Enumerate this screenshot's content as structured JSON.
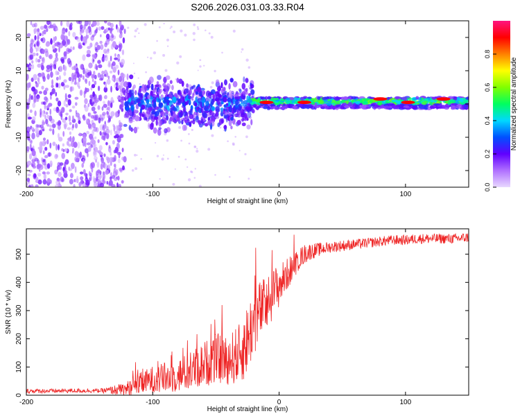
{
  "title": "S206.2026.031.03.33.R04",
  "chart_data": [
    {
      "type": "heatmap",
      "xlabel": "Height of straight line (km)",
      "ylabel": "Frequency (Hz)",
      "xlim": [
        -200,
        150
      ],
      "ylim": [
        -25,
        25
      ],
      "xticks": [
        -200,
        -100,
        0,
        100
      ],
      "xtick_labels": [
        "-200",
        "-100",
        "0",
        "100"
      ],
      "yticks": [
        -20,
        -10,
        0,
        10,
        20
      ],
      "ytick_labels": [
        "-20",
        "-10",
        "0",
        "10",
        "20"
      ],
      "colorbar": {
        "label": "Normalized spectral amplitude",
        "range": [
          0,
          1
        ],
        "ticks": [
          0,
          0.2,
          0.4,
          0.6,
          0.8
        ],
        "tick_labels": [
          "0.0",
          "0.2",
          "0.4",
          "0.6",
          "0.8"
        ]
      },
      "regions": [
        {
          "x_range": [
            -200,
            -122
          ],
          "freq_range": [
            -25,
            25
          ],
          "amplitude": "0.05-0.18",
          "pattern": "scattered noise"
        },
        {
          "x_range": [
            -122,
            -20
          ],
          "freq_range": [
            -8,
            8
          ],
          "amplitude": "0.1-0.3",
          "pattern": "broadening signal"
        },
        {
          "x_range": [
            -20,
            150
          ],
          "freq_range": [
            0,
            2.5
          ],
          "amplitude": "0.3-0.95",
          "pattern": "narrow carrier line"
        }
      ],
      "peak_points": [
        {
          "x": -10,
          "freq": 0.5,
          "amp": 0.9
        },
        {
          "x": 20,
          "freq": 0.5,
          "amp": 0.9
        },
        {
          "x": 80,
          "freq": 1.5,
          "amp": 0.9
        },
        {
          "x": 102,
          "freq": 0.5,
          "amp": 0.9
        },
        {
          "x": 130,
          "freq": 1.5,
          "amp": 0.9
        }
      ]
    },
    {
      "type": "line",
      "xlabel": "Height of straight line (km)",
      "ylabel": "SNR (10 * v/v)",
      "xlim": [
        -200,
        150
      ],
      "ylim": [
        0,
        590
      ],
      "xticks": [
        -200,
        -100,
        0,
        100
      ],
      "xtick_labels": [
        "-200",
        "-100",
        "0",
        "100"
      ],
      "yticks": [
        0,
        100,
        200,
        300,
        400,
        500
      ],
      "ytick_labels": [
        "0",
        "100",
        "200",
        "300",
        "400",
        "500"
      ],
      "series": [
        {
          "name": "SNR",
          "color": "#ee2222",
          "x": [
            -200,
            -180,
            -160,
            -140,
            -122,
            -110,
            -100,
            -90,
            -80,
            -70,
            -60,
            -50,
            -40,
            -30,
            -25,
            -20,
            -15,
            -10,
            -5,
            0,
            5,
            10,
            15,
            20,
            25,
            30,
            40,
            50,
            60,
            70,
            80,
            90,
            100,
            110,
            120,
            130,
            140,
            150
          ],
          "y": [
            15,
            15,
            16,
            16,
            20,
            40,
            55,
            60,
            70,
            85,
            110,
            130,
            125,
            150,
            200,
            260,
            300,
            320,
            360,
            390,
            420,
            450,
            480,
            500,
            510,
            515,
            525,
            530,
            535,
            540,
            545,
            550,
            550,
            555,
            555,
            555,
            555,
            560
          ],
          "spread": [
            8,
            8,
            8,
            8,
            25,
            40,
            50,
            55,
            60,
            70,
            80,
            90,
            90,
            110,
            130,
            120,
            110,
            100,
            90,
            80,
            60,
            50,
            40,
            35,
            30,
            25,
            20,
            20,
            18,
            18,
            18,
            18,
            18,
            18,
            18,
            18,
            18,
            18
          ]
        }
      ]
    }
  ]
}
